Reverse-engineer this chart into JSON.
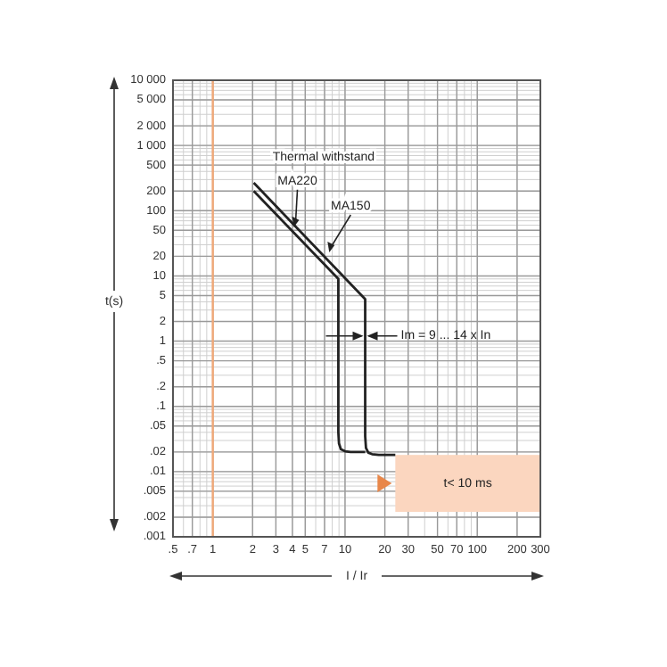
{
  "chart_data": {
    "type": "line",
    "xlabel": "I / Ir",
    "ylabel": "t(s)",
    "log": "xy",
    "grid": true,
    "xlim": [
      0.5,
      300
    ],
    "ylim": [
      0.001,
      10000
    ],
    "xticks": [
      {
        "value": 0.5,
        "label": ".5"
      },
      {
        "value": 0.7,
        "label": ".7"
      },
      1,
      2,
      3,
      4,
      5,
      7,
      10,
      20,
      30,
      50,
      70,
      100,
      200,
      300
    ],
    "yticks": [
      {
        "value": 10000,
        "label": "10 000"
      },
      {
        "value": 5000,
        "label": "5 000"
      },
      {
        "value": 2000,
        "label": "2 000"
      },
      {
        "value": 1000,
        "label": "1 000"
      },
      500,
      200,
      100,
      50,
      20,
      10,
      5,
      2,
      1,
      {
        "value": 0.5,
        "label": ".5"
      },
      {
        "value": 0.2,
        "label": ".2"
      },
      {
        "value": 0.1,
        "label": ".1"
      },
      {
        "value": 0.05,
        "label": ".05"
      },
      {
        "value": 0.02,
        "label": ".02"
      },
      {
        "value": 0.01,
        "label": ".01"
      },
      {
        "value": 0.005,
        "label": ".005"
      },
      {
        "value": 0.002,
        "label": ".002"
      },
      {
        "value": 0.001,
        "label": ".001"
      }
    ],
    "series": [
      {
        "color": "#222222",
        "x": [
          2.04,
          8.9,
          8.9,
          9.0,
          9.3,
          10,
          11,
          14.2
        ],
        "values": [
          200,
          9,
          0.04,
          0.027,
          0.022,
          0.0205,
          0.02,
          0.02
        ]
      },
      {
        "color": "#222222",
        "x": [
          2.04,
          14.2,
          14.2,
          14.4,
          15,
          16,
          18,
          24
        ],
        "values": [
          267,
          4.4,
          0.035,
          0.023,
          0.0195,
          0.0185,
          0.018,
          0.018
        ]
      }
    ],
    "bands": [
      {
        "axis": "x",
        "from": 24,
        "to": 300,
        "label": "t< 10 ms",
        "color": "#fbd6bf"
      }
    ],
    "ref_lines": [
      {
        "axis": "x",
        "value": 1,
        "color": "#f0a878"
      }
    ],
    "annotations": [
      "Thermal withstand",
      {
        "text": "MA220",
        "x": 4.1,
        "y": 56
      },
      {
        "text": "MA150",
        "x": 7.6,
        "y": 23
      },
      {
        "text": "Im = 9 ... 14 x In",
        "x": 14.2,
        "y": 1.2
      }
    ]
  }
}
